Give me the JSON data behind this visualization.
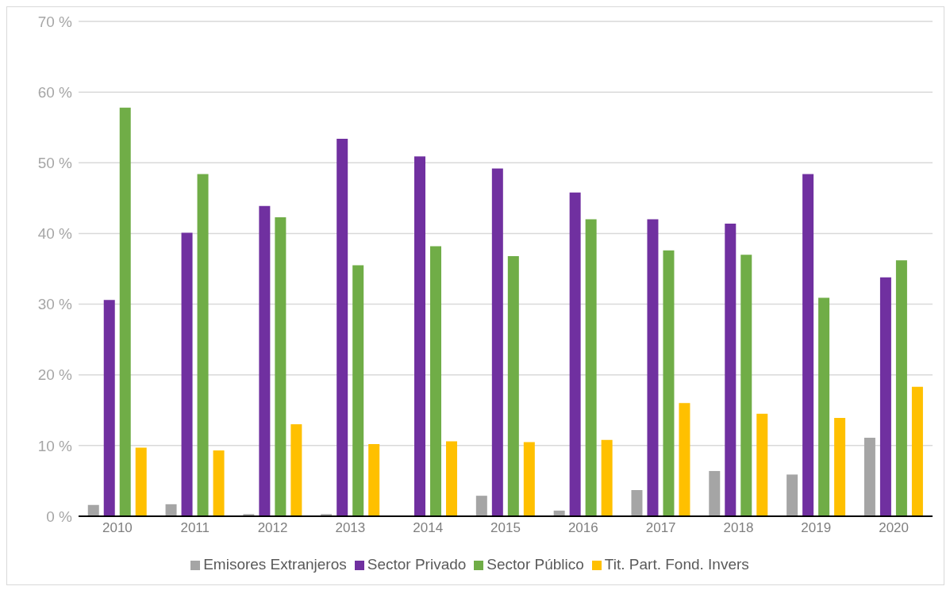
{
  "chart_data": {
    "type": "bar",
    "categories": [
      "2010",
      "2011",
      "2012",
      "2013",
      "2014",
      "2015",
      "2016",
      "2017",
      "2018",
      "2019",
      "2020"
    ],
    "series": [
      {
        "name": "Emisores Extranjeros",
        "color": "#a5a5a5",
        "values": [
          1.6,
          1.7,
          0.3,
          0.3,
          0,
          2.9,
          0.8,
          3.7,
          6.4,
          5.9,
          11.1
        ]
      },
      {
        "name": "Sector Privado",
        "color": "#7030a0",
        "values": [
          30.6,
          40.1,
          43.9,
          53.4,
          50.9,
          49.2,
          45.8,
          42.0,
          41.4,
          48.4,
          33.8
        ]
      },
      {
        "name": "Sector Público",
        "color": "#70ad47",
        "values": [
          57.8,
          48.4,
          42.3,
          35.5,
          38.2,
          36.8,
          42.0,
          37.6,
          37.0,
          30.9,
          36.2
        ]
      },
      {
        "name": "Tit. Part. Fond. Invers",
        "color": "#ffc000",
        "values": [
          9.7,
          9.3,
          13.0,
          10.2,
          10.6,
          10.5,
          10.8,
          16.0,
          14.5,
          13.9,
          18.3
        ]
      }
    ],
    "ylim": [
      0,
      70
    ],
    "yticks": [
      {
        "value": 0,
        "label": "0 %"
      },
      {
        "value": 10,
        "label": "10 %"
      },
      {
        "value": 20,
        "label": "20 %"
      },
      {
        "value": 30,
        "label": "30 %"
      },
      {
        "value": 40,
        "label": "40 %"
      },
      {
        "value": 50,
        "label": "50 %"
      },
      {
        "value": 60,
        "label": "60 %"
      },
      {
        "value": 70,
        "label": "70 %"
      }
    ],
    "grid": "y",
    "legend": "bottom"
  }
}
